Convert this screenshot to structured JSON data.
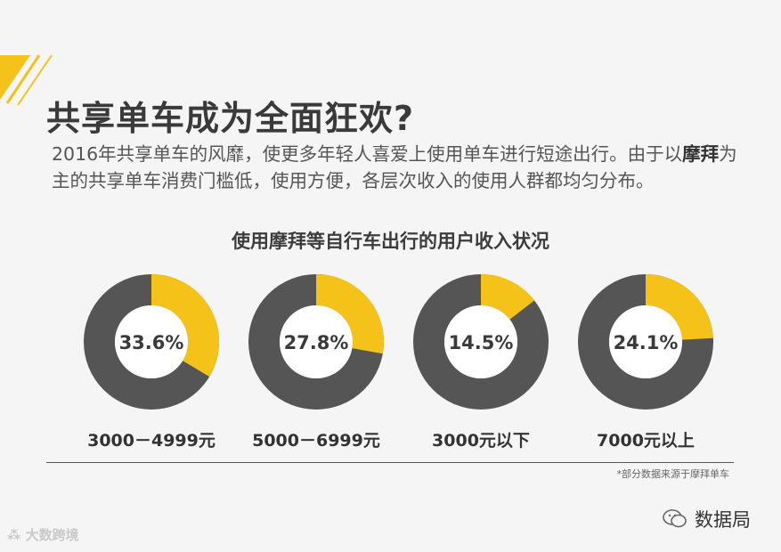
{
  "header": {
    "title": "共享单车成为全面狂欢?",
    "intro_part1": "2016年共享单车的风靡，使更多年轻人喜爱上使用单车进行短途出行。由于以",
    "intro_bold": "摩拜",
    "intro_part2": "为主的共享单车消费门槛低，使用方便，各层次收入的使用人群都均匀分布。"
  },
  "chart_data": {
    "type": "pie",
    "title": "使用摩拜等自行车出行的用户收入状况",
    "categories": [
      "3000－4999元",
      "5000－6999元",
      "3000元以下",
      "7000元以上"
    ],
    "values": [
      33.6,
      27.8,
      14.5,
      24.1
    ],
    "value_labels": [
      "33.6%",
      "27.8%",
      "14.5%",
      "24.1%"
    ],
    "colors": {
      "highlight": "#f5c21a",
      "rest": "#555555"
    }
  },
  "footnote": "*部分数据来源于摩拜单车",
  "watermark_left": "大数跨境",
  "watermark_right": "数据局",
  "accent_color": "#f5c21a"
}
